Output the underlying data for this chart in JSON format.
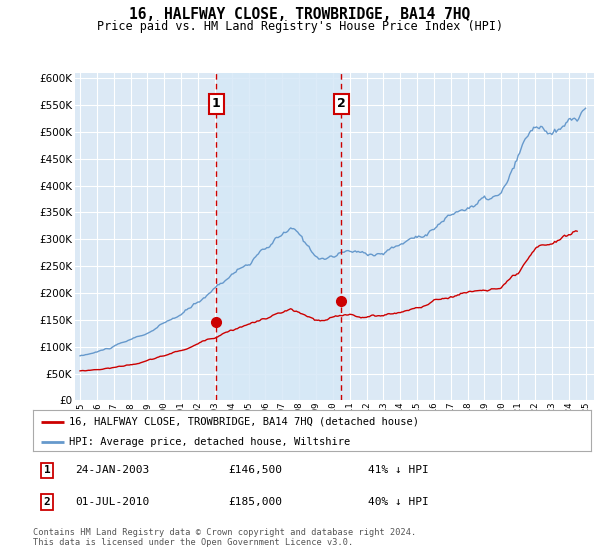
{
  "title": "16, HALFWAY CLOSE, TROWBRIDGE, BA14 7HQ",
  "subtitle": "Price paid vs. HM Land Registry's House Price Index (HPI)",
  "legend_line1": "16, HALFWAY CLOSE, TROWBRIDGE, BA14 7HQ (detached house)",
  "legend_line2": "HPI: Average price, detached house, Wiltshire",
  "transaction1_date": "24-JAN-2003",
  "transaction1_price": "£146,500",
  "transaction1_hpi": "41% ↓ HPI",
  "transaction1_year": 2003.07,
  "transaction1_value": 146500,
  "transaction2_date": "01-JUL-2010",
  "transaction2_price": "£185,000",
  "transaction2_hpi": "40% ↓ HPI",
  "transaction2_year": 2010.5,
  "transaction2_value": 185000,
  "ylim": [
    0,
    610000
  ],
  "xlim_start": 1994.7,
  "xlim_end": 2025.5,
  "red_color": "#cc0000",
  "blue_color": "#6699cc",
  "shade_color": "#d6e8f7",
  "plot_bg": "#dce9f5",
  "grid_color": "#ffffff",
  "footer": "Contains HM Land Registry data © Crown copyright and database right 2024.\nThis data is licensed under the Open Government Licence v3.0."
}
